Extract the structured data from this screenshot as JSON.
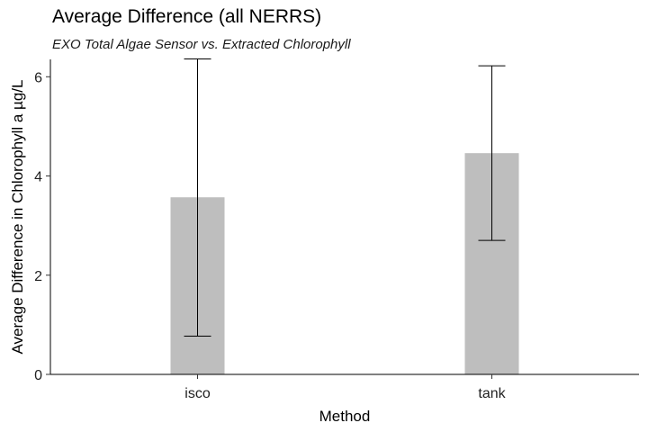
{
  "chart_data": {
    "type": "bar",
    "title": "Average Difference (all NERRS)",
    "subtitle": "EXO Total Algae Sensor vs. Extracted Chlorophyll",
    "xlabel": "Method",
    "ylabel": "Average Difference in Chlorophyll a µg/L",
    "categories": [
      "isco",
      "tank"
    ],
    "values": [
      3.57,
      4.46
    ],
    "error_low": [
      0.77,
      2.7
    ],
    "error_high": [
      6.36,
      6.22
    ],
    "ylim": [
      0,
      6.35
    ],
    "yticks": [
      0,
      2,
      4,
      6
    ],
    "grid": false,
    "bar_color": "#bebebe",
    "error_bar_color": "#000000"
  }
}
